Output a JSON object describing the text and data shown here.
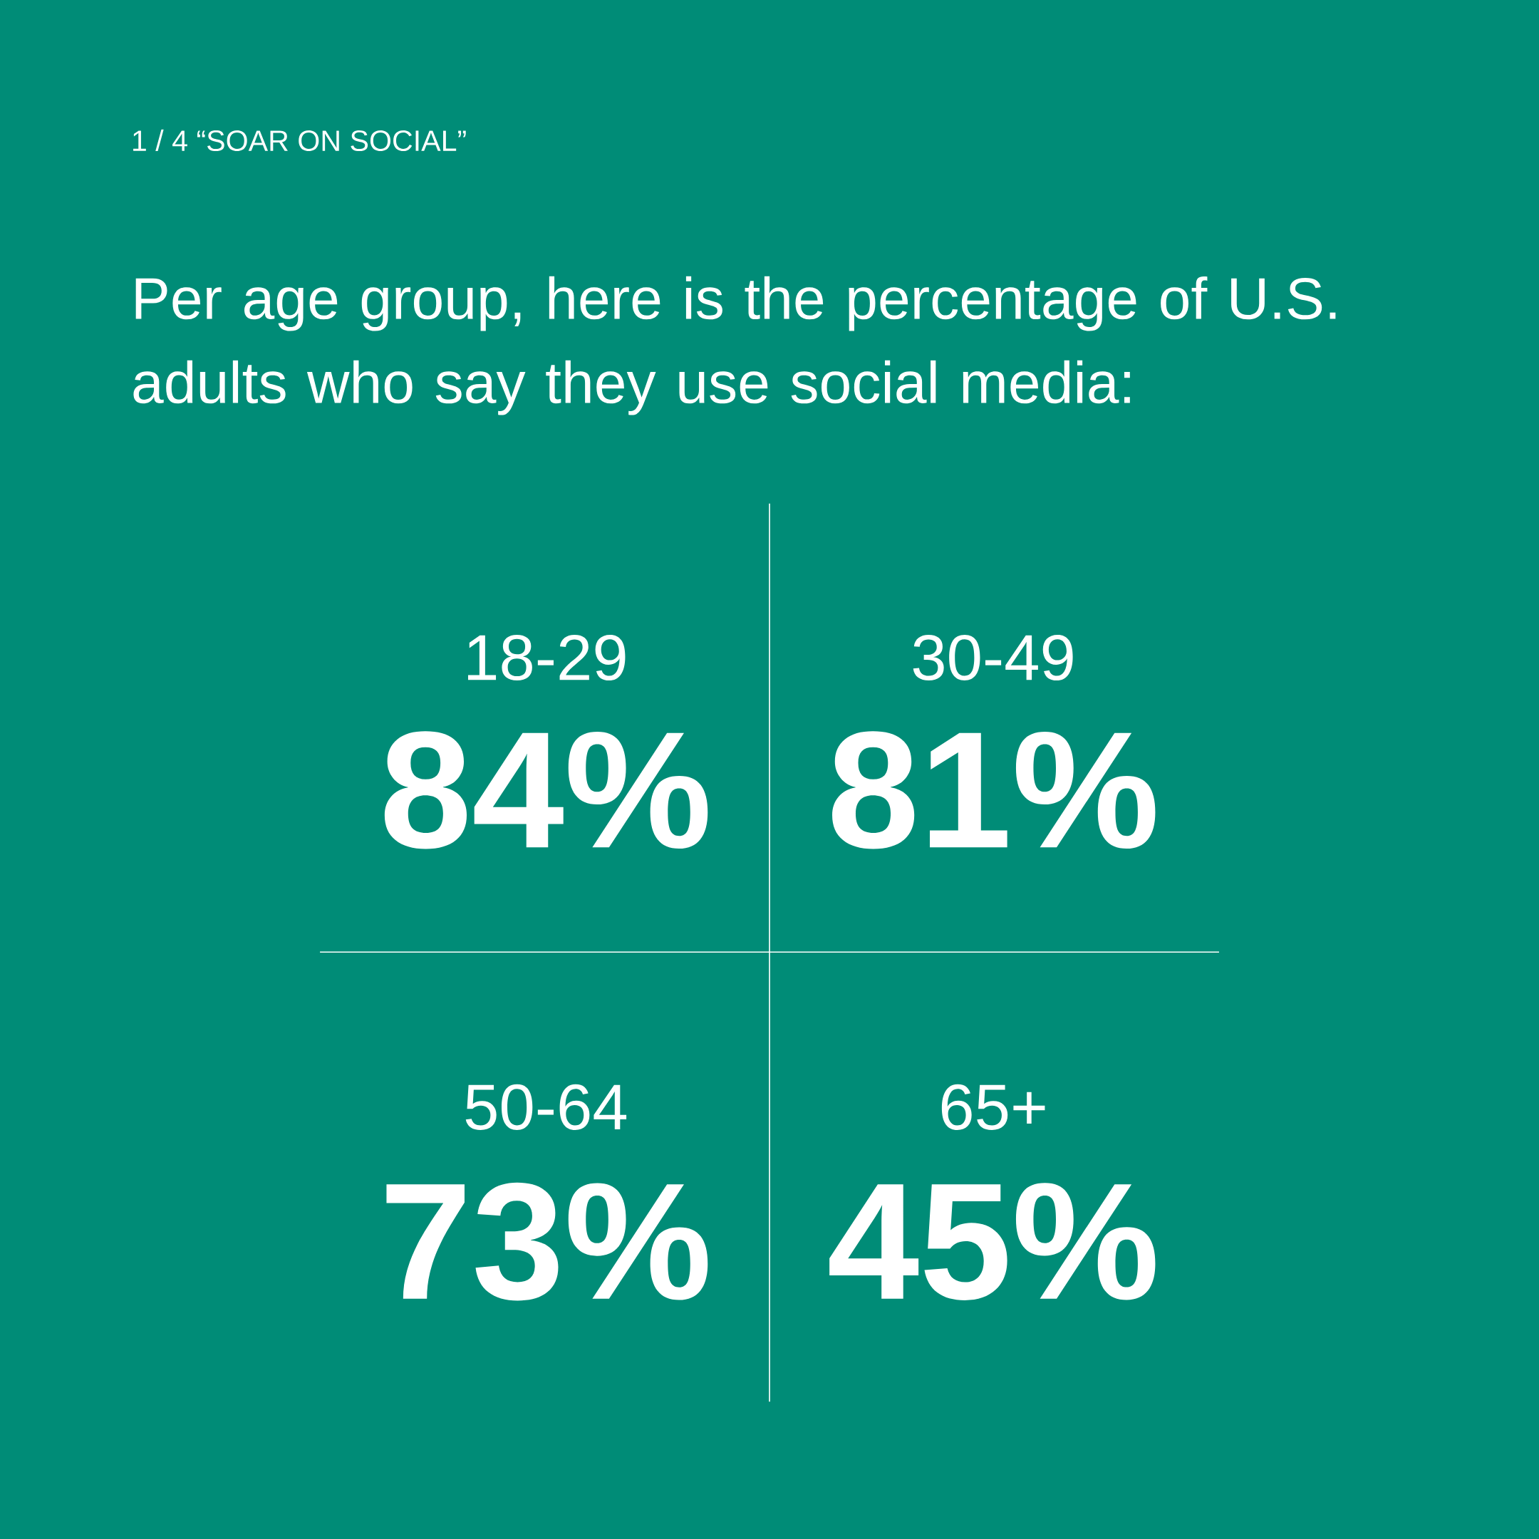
{
  "chart_data": {
    "type": "other",
    "title": "1 / 4  “SOAR ON SOCIAL”",
    "subtitle": "Per age group, here is the percentage of U.S. adults who say they use social media:",
    "categories": [
      "18-29",
      "30-49",
      "50-64",
      "65+"
    ],
    "values": [
      84,
      81,
      73,
      45
    ],
    "ylabel": "%",
    "data_labels": true
  }
}
